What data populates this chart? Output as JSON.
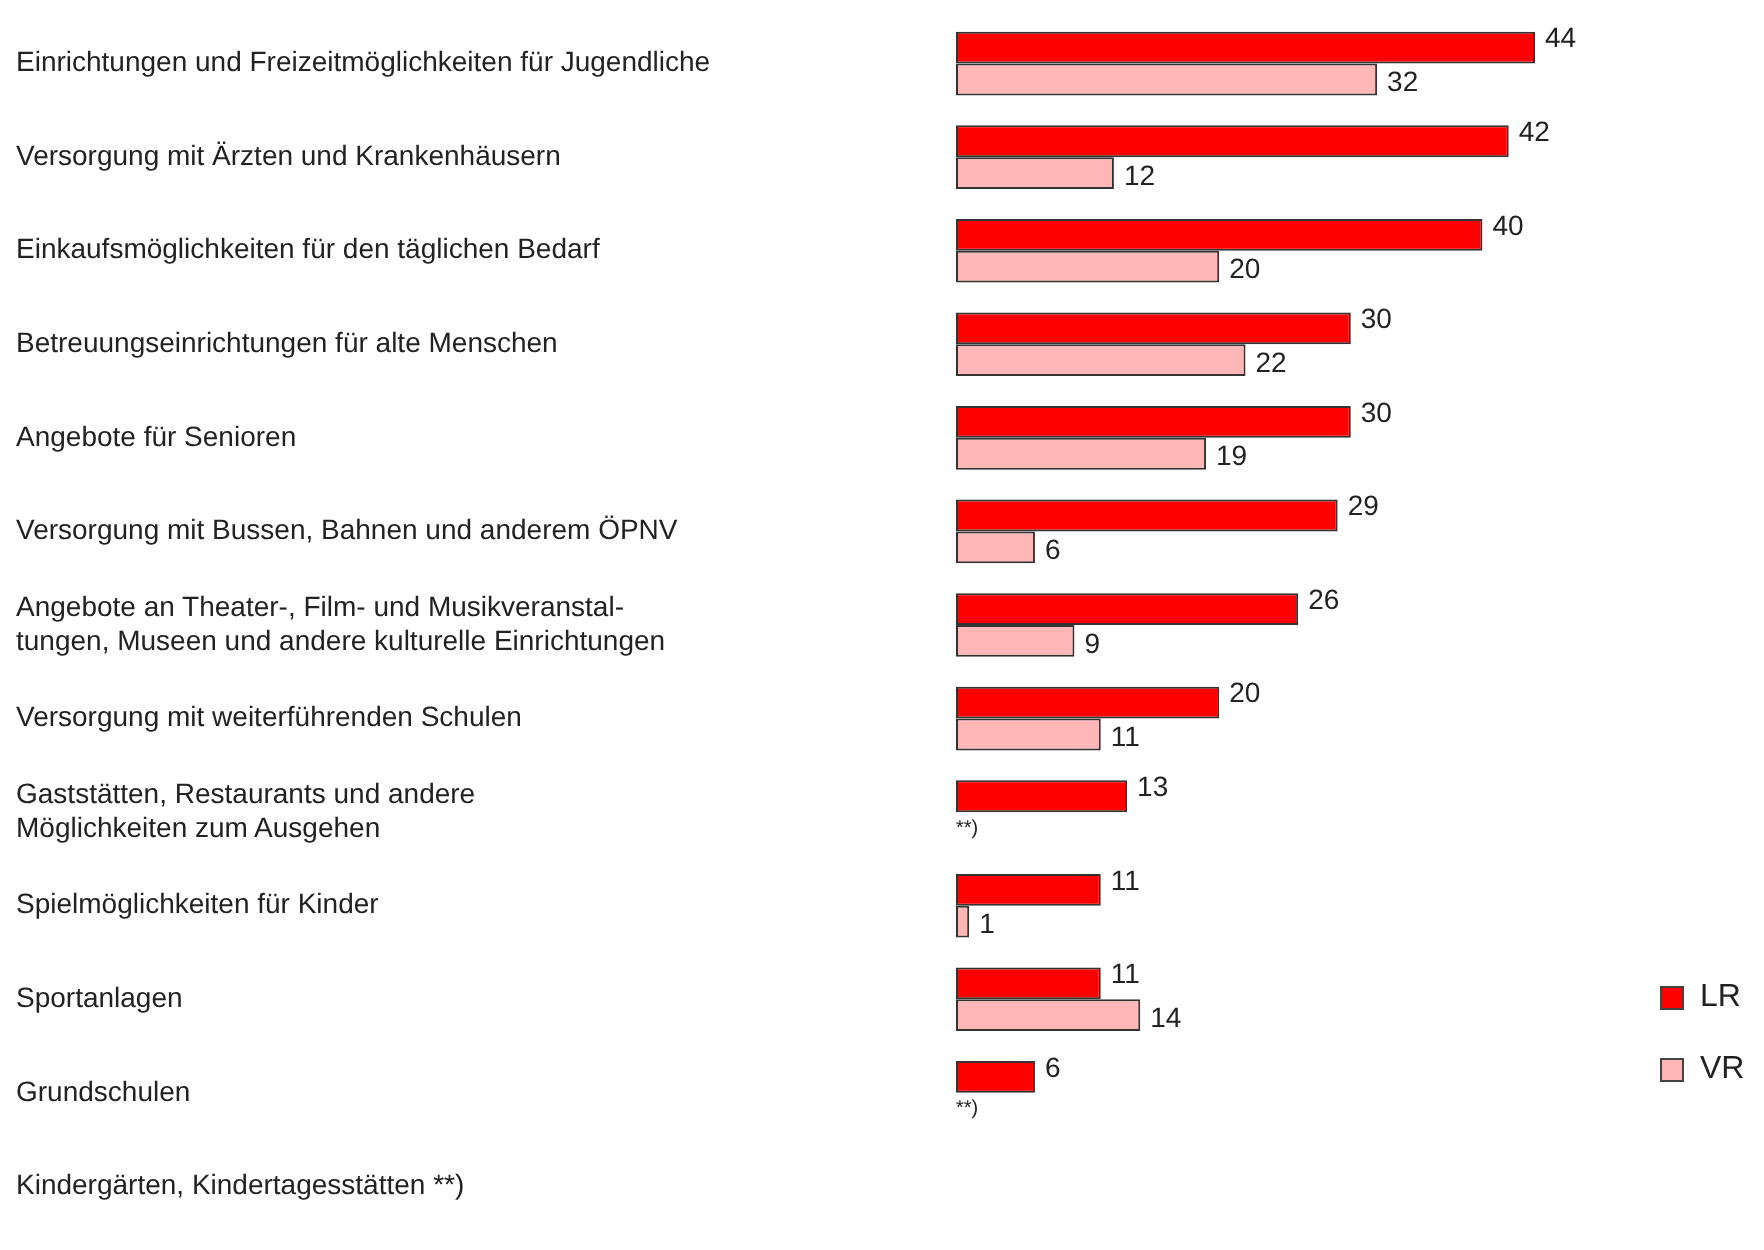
{
  "chart_data": {
    "type": "bar",
    "orientation": "horizontal",
    "legend": "right",
    "data_labels": true,
    "categories": [
      "Einrichtungen und Freizeitmöglichkeiten für Jugendliche",
      "Versorgung mit Ärzten und Krankenhäusern",
      "Einkaufsmöglichkeiten für den täglichen Bedarf",
      "Betreuungseinrichtungen für alte Menschen",
      "Angebote für Senioren",
      "Versorgung mit Bussen, Bahnen und anderem ÖPNV",
      "Angebote an Theater-, Film- und Musikveranstal-\ntungen, Museen und andere kulturelle Einrichtungen",
      "Versorgung mit weiterführenden Schulen",
      "Gaststätten, Restaurants und andere\nMöglichkeiten zum Ausgehen",
      "Spielmöglichkeiten für Kinder",
      "Sportanlagen",
      "Grundschulen",
      "Kindergärten, Kindertagesstätten **)"
    ],
    "series": [
      {
        "name": "LR",
        "color": "#ff0000",
        "values": [
          44,
          42,
          40,
          30,
          30,
          29,
          26,
          20,
          13,
          11,
          11,
          6,
          null
        ],
        "value_labels": [
          "44",
          "42",
          "40",
          "30",
          "30",
          "29",
          "26",
          "20",
          "13",
          "11",
          "11",
          "6",
          null
        ]
      },
      {
        "name": "VR",
        "color": "#ffb6b6",
        "values": [
          32,
          12,
          20,
          22,
          19,
          6,
          9,
          11,
          null,
          1,
          14,
          null,
          null
        ],
        "value_labels": [
          "32",
          "12",
          "20",
          "22",
          "19",
          "6",
          "9",
          "11",
          "**)",
          "1",
          "14",
          "**)",
          null
        ]
      }
    ]
  }
}
